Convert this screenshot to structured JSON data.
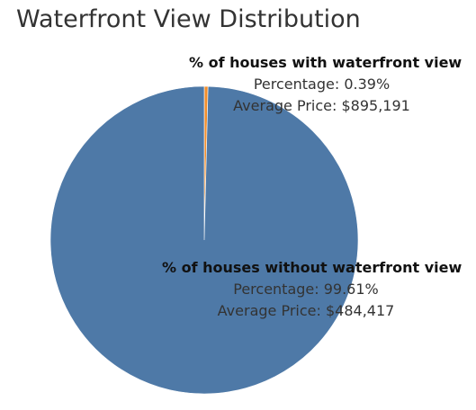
{
  "chart_data": {
    "type": "pie",
    "title": "Waterfront View Distribution",
    "slices": [
      {
        "name": "% of houses with waterfront view",
        "value": 0.39,
        "percentage_text": "Percentage: 0.39%",
        "avg_price_text": "Average Price: $895,191",
        "color": "#f28e2b"
      },
      {
        "name": "% of houses without waterfront view",
        "value": 99.61,
        "percentage_text": "Percentage: 99.61%",
        "avg_price_text": "Average Price: $484,417",
        "color": "#4e79a7"
      }
    ]
  }
}
